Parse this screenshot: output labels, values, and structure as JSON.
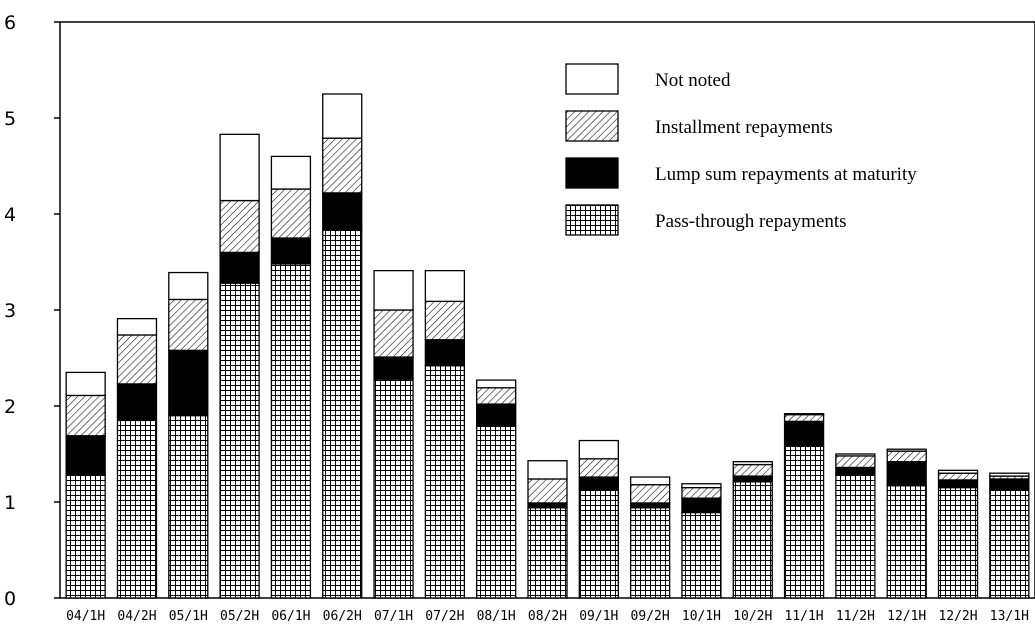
{
  "chart_data": {
    "type": "bar",
    "stacked": true,
    "title": "",
    "xlabel": "",
    "ylabel": "",
    "ylim": [
      0,
      6
    ],
    "yticks": [
      0,
      1,
      2,
      3,
      4,
      5,
      6
    ],
    "grid": false,
    "legend_position": "top-right",
    "categories": [
      "04/1H",
      "04/2H",
      "05/1H",
      "05/2H",
      "06/1H",
      "06/2H",
      "07/1H",
      "07/2H",
      "08/1H",
      "08/2H",
      "09/1H",
      "09/2H",
      "10/1H",
      "10/2H",
      "11/1H",
      "11/2H",
      "12/1H",
      "12/2H",
      "13/1H"
    ],
    "series": [
      {
        "name": "Pass-through repayments",
        "pattern": "grid",
        "values": [
          1.28,
          1.85,
          1.9,
          3.28,
          3.48,
          3.83,
          2.28,
          2.42,
          1.79,
          0.94,
          1.13,
          0.94,
          0.89,
          1.21,
          1.58,
          1.29,
          1.17,
          1.15,
          1.13
        ]
      },
      {
        "name": "Lump sum repayments at maturity",
        "pattern": "solid",
        "values": [
          0.41,
          0.38,
          0.68,
          0.32,
          0.27,
          0.39,
          0.23,
          0.27,
          0.23,
          0.05,
          0.13,
          0.05,
          0.15,
          0.06,
          0.26,
          0.07,
          0.25,
          0.08,
          0.11
        ]
      },
      {
        "name": "Installment repayments",
        "pattern": "hatch",
        "values": [
          0.42,
          0.51,
          0.53,
          0.54,
          0.51,
          0.57,
          0.49,
          0.4,
          0.17,
          0.25,
          0.19,
          0.19,
          0.11,
          0.12,
          0.07,
          0.12,
          0.11,
          0.07,
          0.03
        ]
      },
      {
        "name": "Not noted",
        "pattern": "empty",
        "values": [
          0.24,
          0.17,
          0.28,
          0.69,
          0.34,
          0.46,
          0.41,
          0.32,
          0.08,
          0.19,
          0.19,
          0.08,
          0.04,
          0.03,
          0.01,
          0.02,
          0.02,
          0.03,
          0.03
        ]
      }
    ],
    "legend_order": [
      "Not noted",
      "Installment repayments",
      "Lump sum repayments at maturity",
      "Pass-through repayments"
    ]
  }
}
